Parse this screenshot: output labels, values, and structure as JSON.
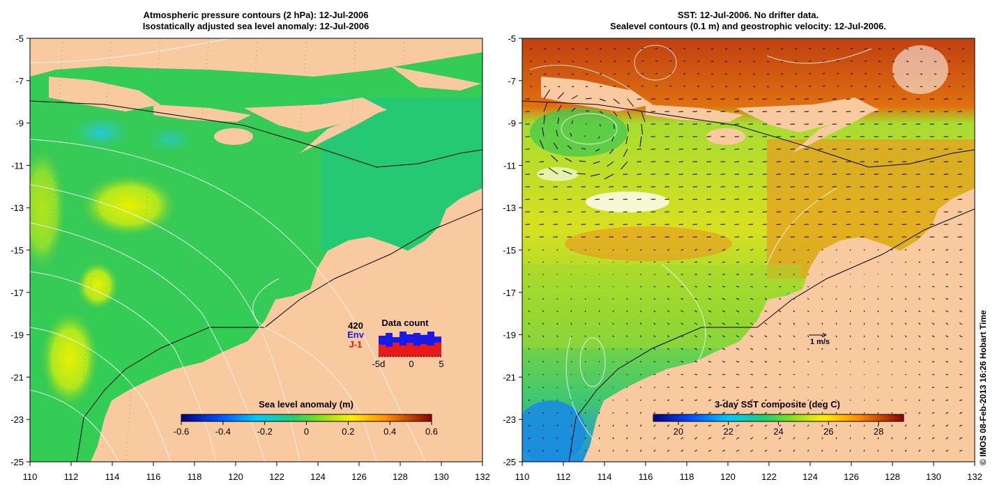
{
  "left_panel": {
    "title_line1": "Atmospheric pressure contours (2 hPa): 12-Jul-2006",
    "title_line2": "Isostatically adjusted sea level anomaly: 12-Jul-2006",
    "lon_ticks": [
      "110",
      "112",
      "114",
      "116",
      "118",
      "120",
      "122",
      "124",
      "126",
      "128",
      "130",
      "132"
    ],
    "lat_ticks": [
      "-5",
      "-7",
      "-9",
      "-11",
      "-13",
      "-15",
      "-17",
      "-19",
      "-21",
      "-23",
      "-25"
    ],
    "colorbar": {
      "label": "Sea level anomaly (m)",
      "ticks": [
        "-0.6",
        "-0.4",
        "-0.2",
        "0",
        "0.2",
        "0.4",
        "0.6"
      ]
    },
    "data_count": {
      "title": "Data count",
      "total": "420",
      "env_label": "Env",
      "j1_label": "J-1",
      "axis_ticks": [
        "-5d",
        "0",
        "5"
      ],
      "env_color": "#1a1ae6",
      "j1_color": "#e61a1a",
      "env_fraction": [
        0.75,
        0.85,
        0.7,
        0.9,
        0.8,
        0.85,
        0.78,
        0.9,
        0.72
      ],
      "j1_fraction": [
        0.42,
        0.35,
        0.5,
        0.4,
        0.48,
        0.38,
        0.45,
        0.4,
        0.5
      ]
    }
  },
  "right_panel": {
    "title_line1": "SST: 12-Jul-2006. No drifter data.",
    "title_line2": "Sealevel contours (0.1 m) and geostrophic velocity: 12-Jul-2006.",
    "lon_ticks": [
      "110",
      "112",
      "114",
      "116",
      "118",
      "120",
      "122",
      "124",
      "126",
      "128",
      "130",
      "132"
    ],
    "lat_ticks": [
      "-5",
      "-7",
      "-9",
      "-11",
      "-13",
      "-15",
      "-17",
      "-19",
      "-21",
      "-23",
      "-25"
    ],
    "velocity_scale_label": "1 m/s",
    "colorbar": {
      "label": "3-day SST composite (deg C)",
      "ticks": [
        "20",
        "22",
        "24",
        "26",
        "28"
      ]
    }
  },
  "copyright": "© IMOS 08-Feb-2013 16:26 Hobart Time",
  "colors": {
    "land": "#f9c9a0",
    "ocean_left": "#33cc55",
    "ocean_right": "#7fd23a"
  }
}
